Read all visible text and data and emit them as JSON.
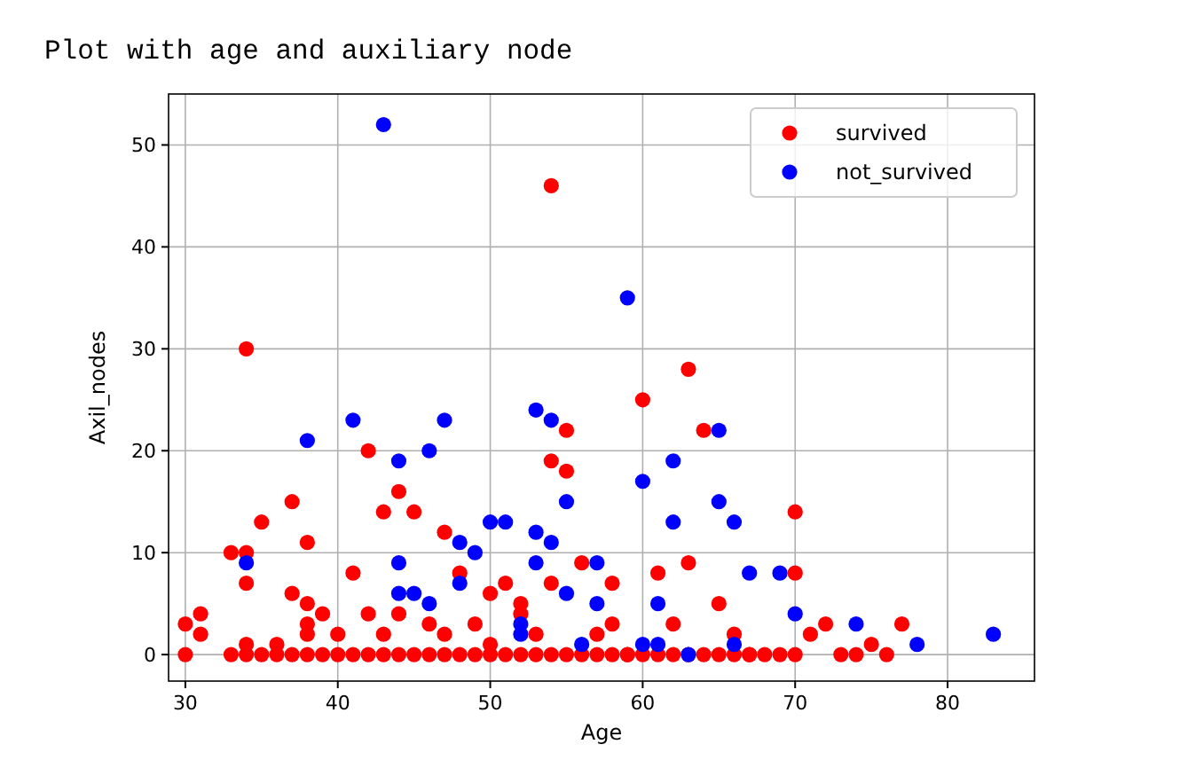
{
  "chart_data": {
    "type": "scatter",
    "title": "Plot with age and auxiliary node",
    "xlabel": "Age",
    "ylabel": "Axil_nodes",
    "xlim": [
      28.9,
      85.7
    ],
    "ylim": [
      -2.6,
      55
    ],
    "xticks": [
      30,
      40,
      50,
      60,
      70,
      80
    ],
    "yticks": [
      0,
      10,
      20,
      30,
      40,
      50
    ],
    "grid": true,
    "legend": "top right",
    "marker": "circle",
    "series": [
      {
        "name": "survived",
        "color": "#ff0000",
        "x": [
          30,
          30,
          31,
          31,
          33,
          33,
          34,
          34,
          34,
          34,
          35,
          36,
          37,
          37,
          38,
          38,
          38,
          38,
          39,
          40,
          41,
          42,
          42,
          43,
          43,
          44,
          44,
          45,
          46,
          47,
          47,
          48,
          49,
          50,
          50,
          51,
          52,
          52,
          53,
          54,
          54,
          54,
          55,
          55,
          56,
          57,
          58,
          58,
          59,
          60,
          61,
          62,
          63,
          63,
          64,
          65,
          66,
          67,
          70,
          70,
          71,
          72,
          73,
          74,
          75,
          76,
          77,
          34,
          35,
          36,
          37,
          38,
          39,
          40,
          41,
          42,
          43,
          44,
          45,
          46,
          47,
          48,
          49,
          50,
          51,
          52,
          53,
          54,
          55,
          56,
          57,
          58,
          59,
          60,
          61,
          62,
          63,
          64,
          65,
          66,
          67,
          68,
          69,
          70
        ],
        "values": [
          0,
          3,
          2,
          4,
          10,
          0,
          30,
          10,
          7,
          1,
          13,
          1,
          15,
          6,
          11,
          5,
          3,
          2,
          4,
          2,
          8,
          20,
          4,
          14,
          2,
          16,
          4,
          14,
          3,
          12,
          2,
          8,
          3,
          6,
          1,
          7,
          4,
          5,
          2,
          46,
          19,
          7,
          22,
          18,
          9,
          2,
          7,
          3,
          0,
          25,
          8,
          3,
          28,
          9,
          22,
          5,
          2,
          0,
          14,
          8,
          2,
          3,
          0,
          0,
          1,
          0,
          3,
          0,
          0,
          0,
          0,
          0,
          0,
          0,
          0,
          0,
          0,
          0,
          0,
          0,
          0,
          0,
          0,
          0,
          0,
          0,
          0,
          0,
          0,
          0,
          0,
          0,
          0,
          0,
          0,
          0,
          0,
          0,
          0,
          0,
          0,
          0,
          0,
          0
        ]
      },
      {
        "name": "not_survived",
        "color": "#0000ff",
        "x": [
          43,
          59,
          53,
          54,
          47,
          41,
          38,
          46,
          44,
          62,
          60,
          65,
          55,
          66,
          50,
          51,
          62,
          53,
          54,
          48,
          49,
          34,
          44,
          53,
          57,
          61,
          65,
          67,
          69,
          70,
          74,
          78,
          83,
          44,
          45,
          46,
          48,
          52,
          52,
          55,
          56,
          57,
          60,
          61,
          63,
          66
        ],
        "values": [
          52,
          35,
          24,
          23,
          23,
          23,
          21,
          20,
          19,
          19,
          17,
          15,
          15,
          13,
          13,
          13,
          13,
          12,
          11,
          11,
          10,
          9,
          9,
          9,
          9,
          5,
          22,
          8,
          8,
          4,
          3,
          1,
          2,
          6,
          6,
          5,
          7,
          3,
          2,
          6,
          1,
          5,
          1,
          1,
          0,
          1
        ]
      }
    ]
  }
}
